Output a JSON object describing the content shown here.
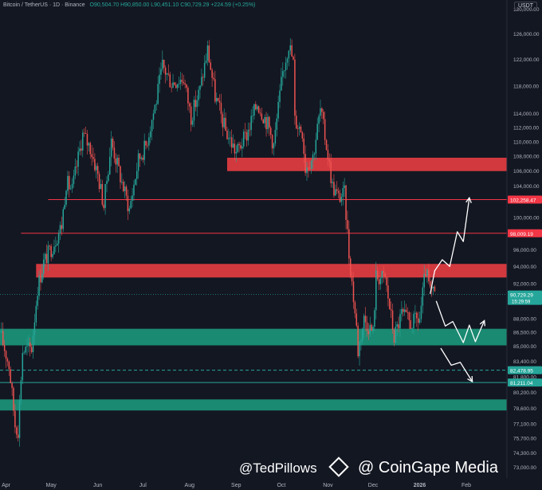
{
  "header": {
    "symbol": "Bitcoin / TetherUS · 1D · Binance",
    "ohlc": "O90,504.70 H90,850.00 L90,451.10 C90,729.29 +224.59 (+0.25%)",
    "currency_button": "USDT"
  },
  "watermark": {
    "handle": "@TedPillows",
    "brand": "@ CoinGape Media"
  },
  "colors": {
    "background": "#131722",
    "up": "#26a69a",
    "down": "#ef5350",
    "resistance_zone": "#d2393f",
    "support_zone": "#1a8a72",
    "resistance_line": "#f23645",
    "support_line": "#26a69a"
  },
  "chart_data": {
    "type": "candlestick",
    "price_scale": "log",
    "ylim": [
      72000,
      131500
    ],
    "x_range": [
      "2025-03-28",
      "2026-02-28"
    ],
    "y_ticks": [
      130000,
      126000,
      122000,
      118000,
      114000,
      112000,
      110000,
      108000,
      106000,
      104000,
      100000,
      96000,
      94000,
      92000,
      88000,
      86500,
      85000,
      83400,
      81800,
      80200,
      78600,
      77100,
      75700,
      74300,
      73000
    ],
    "y_tick_labels": [
      "130,000.00",
      "126,000.00",
      "122,000.00",
      "118,000.00",
      "114,000.00",
      "112,000.00",
      "110,000.00",
      "108,000.00",
      "106,000.00",
      "104,000.00",
      "100,000.00",
      "96,000.00",
      "94,000.00",
      "92,000.00",
      "88,000.00",
      "86,500.00",
      "85,000.00",
      "83,400.00",
      "81,800.00",
      "80,200.00",
      "78,600.00",
      "77,100.00",
      "75,700.00",
      "74,300.00",
      "73,000.00"
    ],
    "x_ticks": [
      {
        "date": "2025-04-01",
        "label": "Apr"
      },
      {
        "date": "2025-05-01",
        "label": "May"
      },
      {
        "date": "2025-06-01",
        "label": "Jun"
      },
      {
        "date": "2025-07-01",
        "label": "Jul"
      },
      {
        "date": "2025-08-01",
        "label": "Aug"
      },
      {
        "date": "2025-09-01",
        "label": "Sep"
      },
      {
        "date": "2025-10-01",
        "label": "Oct"
      },
      {
        "date": "2025-11-01",
        "label": "Nov"
      },
      {
        "date": "2025-12-01",
        "label": "Dec"
      },
      {
        "date": "2026-01-01",
        "label": "2026"
      },
      {
        "date": "2026-02-01",
        "label": "Feb"
      }
    ],
    "price_path": [
      [
        "2025-03-28",
        86500
      ],
      [
        "2025-04-03",
        83000
      ],
      [
        "2025-04-07",
        77000
      ],
      [
        "2025-04-09",
        76500
      ],
      [
        "2025-04-12",
        84500
      ],
      [
        "2025-04-18",
        84800
      ],
      [
        "2025-04-22",
        91500
      ],
      [
        "2025-04-26",
        94500
      ],
      [
        "2025-05-02",
        96500
      ],
      [
        "2025-05-08",
        99000
      ],
      [
        "2025-05-11",
        104500
      ],
      [
        "2025-05-15",
        103500
      ],
      [
        "2025-05-22",
        111000
      ],
      [
        "2025-05-27",
        109200
      ],
      [
        "2025-06-01",
        105500
      ],
      [
        "2025-06-05",
        101500
      ],
      [
        "2025-06-10",
        110000
      ],
      [
        "2025-06-17",
        104500
      ],
      [
        "2025-06-22",
        101000
      ],
      [
        "2025-06-28",
        107500
      ],
      [
        "2025-07-03",
        109500
      ],
      [
        "2025-07-10",
        116000
      ],
      [
        "2025-07-14",
        121000
      ],
      [
        "2025-07-20",
        118500
      ],
      [
        "2025-07-28",
        119200
      ],
      [
        "2025-08-02",
        113500
      ],
      [
        "2025-08-08",
        117500
      ],
      [
        "2025-08-13",
        123500
      ],
      [
        "2025-08-18",
        116500
      ],
      [
        "2025-08-25",
        111500
      ],
      [
        "2025-09-01",
        108500
      ],
      [
        "2025-09-08",
        111000
      ],
      [
        "2025-09-15",
        115500
      ],
      [
        "2025-09-22",
        112500
      ],
      [
        "2025-09-26",
        109500
      ],
      [
        "2025-10-02",
        120000
      ],
      [
        "2025-10-06",
        124500
      ],
      [
        "2025-10-09",
        121500
      ],
      [
        "2025-10-10",
        113000
      ],
      [
        "2025-10-15",
        111500
      ],
      [
        "2025-10-17",
        106500
      ],
      [
        "2025-10-22",
        108000
      ],
      [
        "2025-10-27",
        114500
      ],
      [
        "2025-10-31",
        109500
      ],
      [
        "2025-11-04",
        104000
      ],
      [
        "2025-11-08",
        102500
      ],
      [
        "2025-11-12",
        103000
      ],
      [
        "2025-11-15",
        95500
      ],
      [
        "2025-11-20",
        87000
      ],
      [
        "2025-11-21",
        84500
      ],
      [
        "2025-11-25",
        88000
      ],
      [
        "2025-12-01",
        86500
      ],
      [
        "2025-12-03",
        92800
      ],
      [
        "2025-12-09",
        92600
      ],
      [
        "2025-12-15",
        86000
      ],
      [
        "2025-12-20",
        88500
      ],
      [
        "2025-12-26",
        87500
      ],
      [
        "2026-01-01",
        88000
      ],
      [
        "2026-01-05",
        93500
      ],
      [
        "2026-01-08",
        91000
      ],
      [
        "2026-01-11",
        90729
      ]
    ],
    "last_price": {
      "value": 90729.29,
      "label": "90,729.29",
      "countdown": "15:29:59"
    },
    "zones": [
      {
        "name": "resistance-zone-upper",
        "from": 106000,
        "to": 107800,
        "x_start": "2025-08-26",
        "kind": "resistance"
      },
      {
        "name": "resistance-zone-lower",
        "from": 92700,
        "to": 94300,
        "x_start": "2025-04-21",
        "kind": "resistance"
      },
      {
        "name": "support-zone-upper",
        "from": 85100,
        "to": 86900,
        "x_start": "2025-03-28",
        "kind": "support"
      },
      {
        "name": "support-zone-lower",
        "from": 78400,
        "to": 79500,
        "x_start": "2025-03-28",
        "kind": "support"
      }
    ],
    "levels": [
      {
        "value": 102258.47,
        "label": "102,258.47",
        "kind": "resistance",
        "style": "solid",
        "x_start": "2025-04-29"
      },
      {
        "value": 98009.19,
        "label": "98,009.19",
        "kind": "resistance",
        "style": "solid",
        "x_start": "2025-04-11"
      },
      {
        "value": 82478.95,
        "label": "82,478.95",
        "kind": "support",
        "style": "dashed",
        "x_start": "2025-03-28"
      },
      {
        "value": 81211.04,
        "label": "81,211.04",
        "kind": "support",
        "style": "solid",
        "x_start": "2025-03-28"
      }
    ],
    "projections": [
      {
        "name": "bullish-path",
        "points": [
          [
            "2026-01-08",
            90800
          ],
          [
            "2026-01-11",
            93500
          ],
          [
            "2026-01-16",
            94800
          ],
          [
            "2026-01-21",
            94000
          ],
          [
            "2026-01-26",
            98200
          ],
          [
            "2026-01-30",
            97000
          ],
          [
            "2026-02-03",
            102500
          ]
        ]
      },
      {
        "name": "range-path",
        "points": [
          [
            "2026-01-12",
            90000
          ],
          [
            "2026-01-18",
            87200
          ],
          [
            "2026-01-23",
            87700
          ],
          [
            "2026-01-30",
            85400
          ],
          [
            "2026-02-03",
            87300
          ],
          [
            "2026-02-07",
            85500
          ],
          [
            "2026-02-13",
            87800
          ]
        ]
      },
      {
        "name": "bearish-path",
        "points": [
          [
            "2026-01-15",
            84800
          ],
          [
            "2026-01-22",
            83000
          ],
          [
            "2026-01-28",
            83300
          ],
          [
            "2026-02-05",
            81300
          ]
        ]
      }
    ]
  }
}
